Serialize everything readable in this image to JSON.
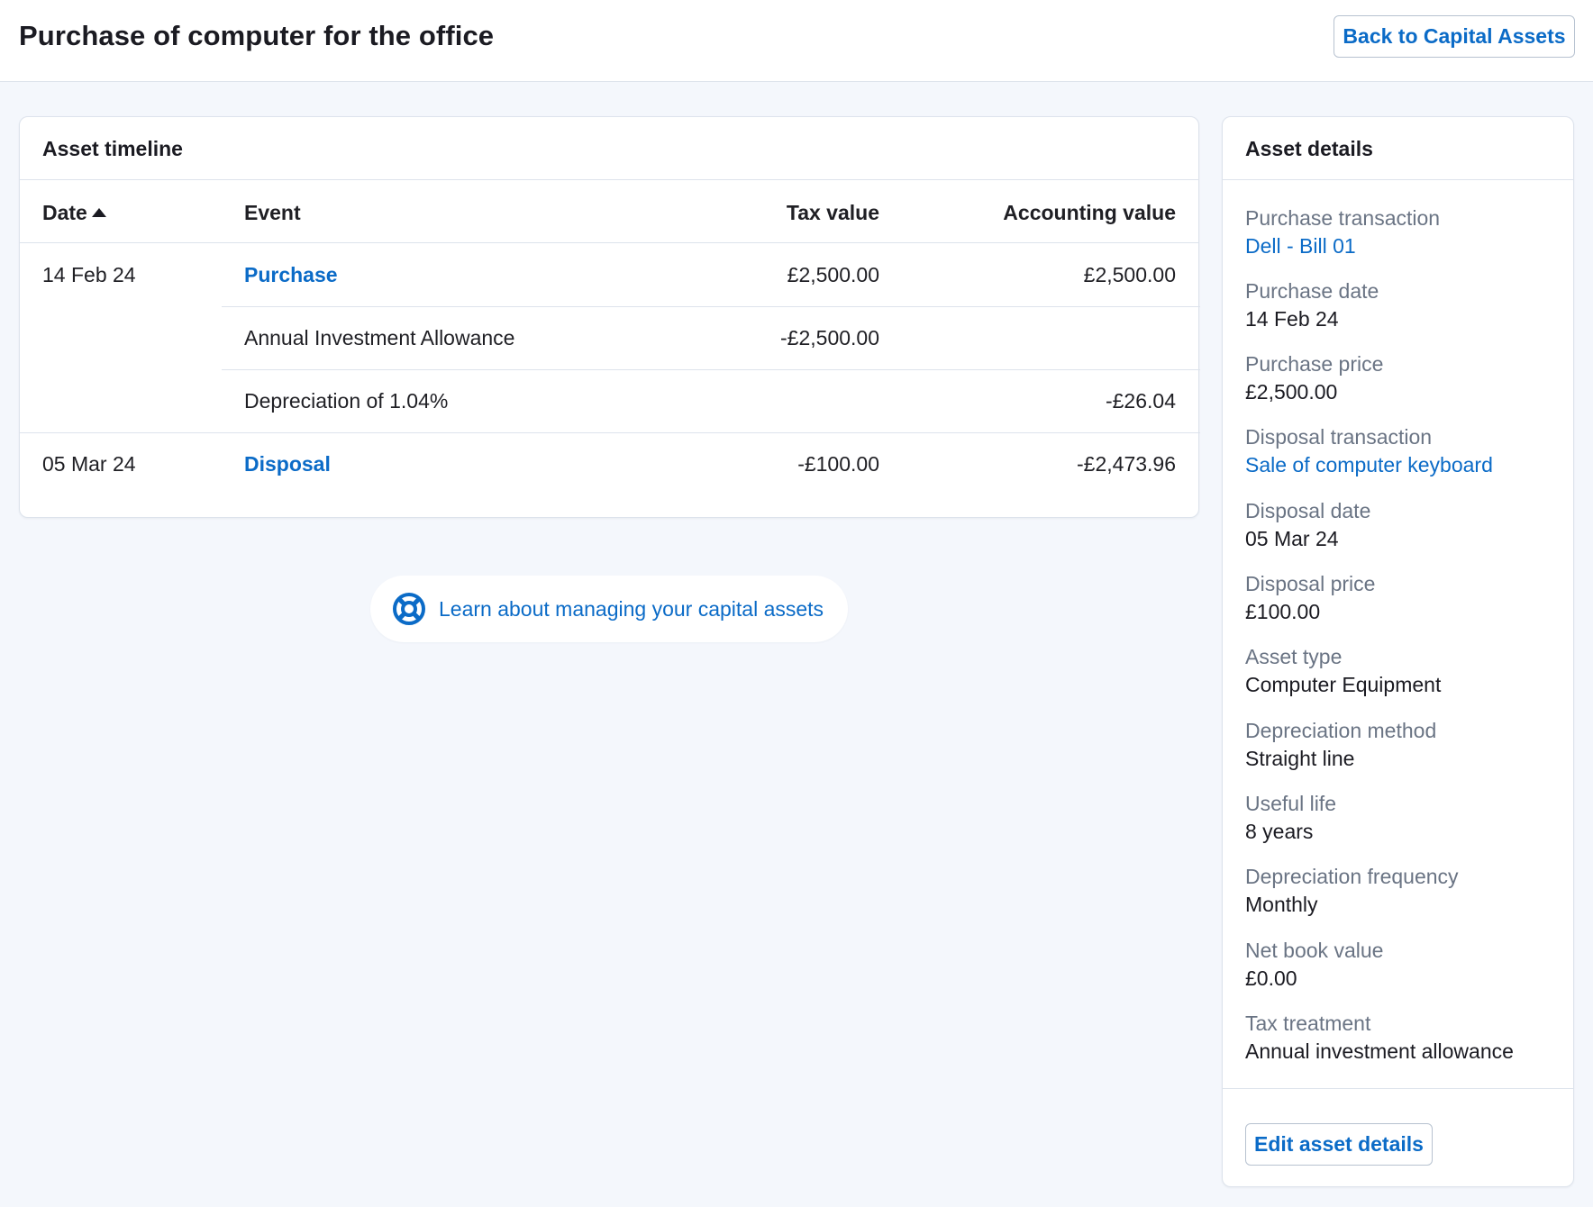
{
  "header": {
    "title": "Purchase of computer for the office",
    "back_button": "Back to Capital Assets"
  },
  "timeline": {
    "title": "Asset timeline",
    "columns": {
      "date": "Date",
      "event": "Event",
      "tax": "Tax value",
      "accounting": "Accounting value"
    },
    "rows": [
      {
        "date": "14 Feb 24",
        "event": "Purchase",
        "tax": "£2,500.00",
        "accounting": "£2,500.00"
      },
      {
        "date": "",
        "event": "Annual Investment Allowance",
        "tax": "-£2,500.00",
        "accounting": ""
      },
      {
        "date": "",
        "event": "Depreciation of 1.04%",
        "tax": "",
        "accounting": "-£26.04"
      },
      {
        "date": "05 Mar 24",
        "event": "Disposal",
        "tax": "-£100.00",
        "accounting": "-£2,473.96"
      }
    ]
  },
  "help": {
    "text": "Learn about managing your capital assets",
    "icon": "lifebuoy-icon"
  },
  "details": {
    "title": "Asset details",
    "items": [
      {
        "label": "Purchase transaction",
        "value": "Dell - Bill 01"
      },
      {
        "label": "Purchase date",
        "value": "14 Feb 24"
      },
      {
        "label": "Purchase price",
        "value": "£2,500.00"
      },
      {
        "label": "Disposal transaction",
        "value": "Sale of computer keyboard"
      },
      {
        "label": "Disposal date",
        "value": "05 Mar 24"
      },
      {
        "label": "Disposal price",
        "value": "£100.00"
      },
      {
        "label": "Asset type",
        "value": "Computer Equipment"
      },
      {
        "label": "Depreciation method",
        "value": "Straight line"
      },
      {
        "label": "Useful life",
        "value": "8 years"
      },
      {
        "label": "Depreciation frequency",
        "value": "Monthly"
      },
      {
        "label": "Net book value",
        "value": "£0.00"
      },
      {
        "label": "Tax treatment",
        "value": "Annual investment allowance"
      }
    ],
    "edit_button": "Edit asset details"
  },
  "colors": {
    "link": "#0b6bc7",
    "background": "#f4f7fc",
    "border": "#dde3ec",
    "label": "#6a7484"
  }
}
